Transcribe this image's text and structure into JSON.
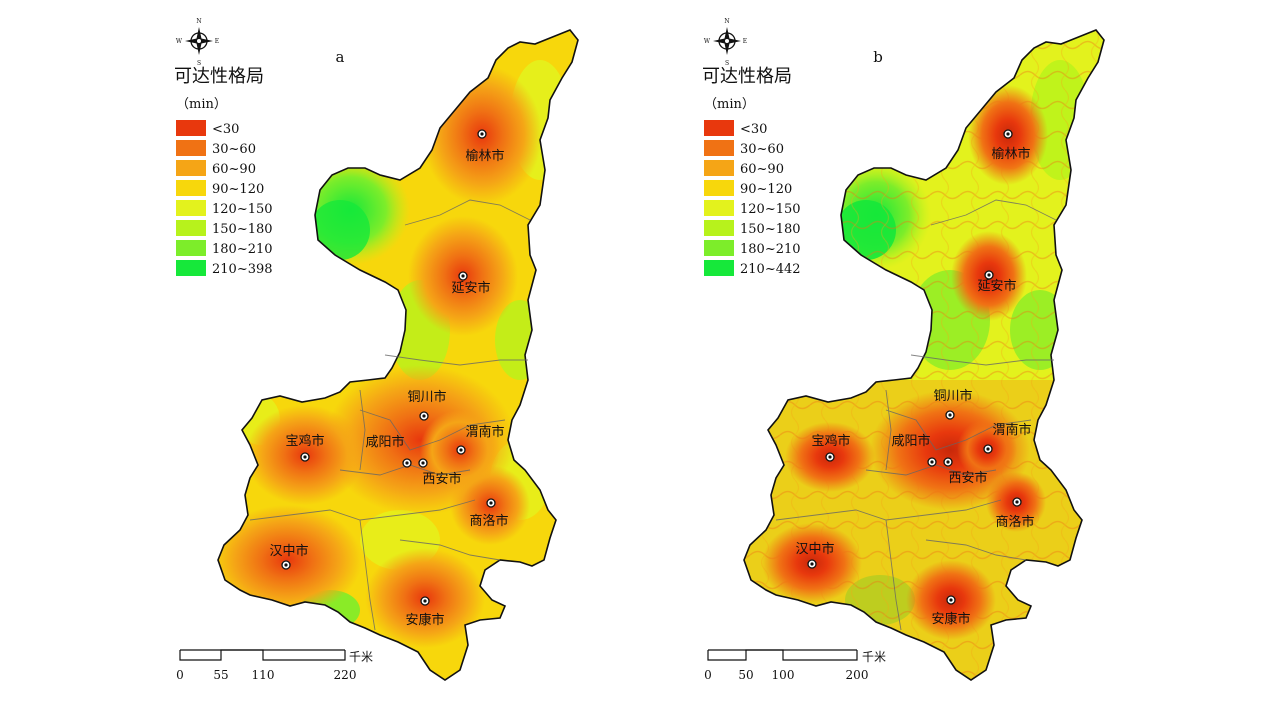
{
  "map_panels": [
    {
      "panel_label": "a",
      "legend_title": "可达性格局",
      "legend_unit": "（min）",
      "legend_items": [
        {
          "label": "<30",
          "color": "#e8380d"
        },
        {
          "label": "30~60",
          "color": "#f07214"
        },
        {
          "label": "60~90",
          "color": "#f5a516"
        },
        {
          "label": "90~120",
          "color": "#f7d70c"
        },
        {
          "label": "120~150",
          "color": "#e3f21d"
        },
        {
          "label": "150~180",
          "color": "#b7f21c"
        },
        {
          "label": "180~210",
          "color": "#7ded2a"
        },
        {
          "label": "210~398",
          "color": "#16e83a"
        }
      ],
      "scale_labels": [
        "0",
        "55",
        "110",
        "220"
      ],
      "scale_unit": "千米",
      "cities": [
        "榆林市",
        "延安市",
        "铜川市",
        "渭南市",
        "宝鸡市",
        "咸阳市",
        "西安市",
        "商洛市",
        "汉中市",
        "安康市"
      ]
    },
    {
      "panel_label": "b",
      "legend_title": "可达性格局",
      "legend_unit": "（min）",
      "legend_items": [
        {
          "label": "<30",
          "color": "#e8380d"
        },
        {
          "label": "30~60",
          "color": "#f07214"
        },
        {
          "label": "60~90",
          "color": "#f5a516"
        },
        {
          "label": "90~120",
          "color": "#f7d70c"
        },
        {
          "label": "120~150",
          "color": "#e3f21d"
        },
        {
          "label": "150~180",
          "color": "#b7f21c"
        },
        {
          "label": "180~210",
          "color": "#7ded2a"
        },
        {
          "label": "210~442",
          "color": "#16e83a"
        }
      ],
      "scale_labels": [
        "0",
        "50",
        "100",
        "200"
      ],
      "scale_unit": "千米",
      "cities": [
        "榆林市",
        "延安市",
        "铜川市",
        "渭南市",
        "宝鸡市",
        "咸阳市",
        "西安市",
        "商洛市",
        "汉中市",
        "安康市"
      ]
    }
  ],
  "compass": {
    "n": "N",
    "s": "S",
    "e": "E",
    "w": "W"
  }
}
